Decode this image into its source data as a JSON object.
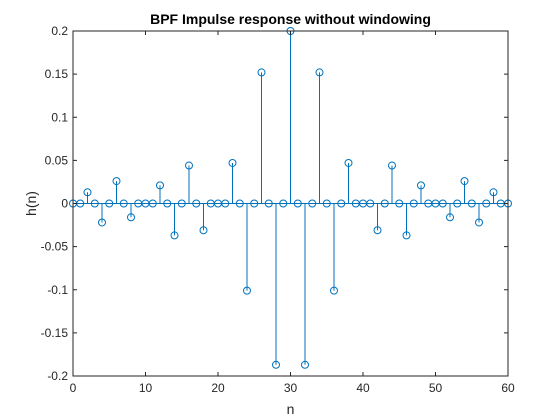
{
  "chart_data": {
    "type": "stem",
    "title": "BPF Impulse response without windowing",
    "xlabel": "n",
    "ylabel": "h(n)",
    "xlim": [
      0,
      60
    ],
    "ylim": [
      -0.2,
      0.2
    ],
    "xticks": [
      0,
      10,
      20,
      30,
      40,
      50,
      60
    ],
    "yticks": [
      -0.2,
      -0.15,
      -0.1,
      -0.05,
      0,
      0.05,
      0.1,
      0.15,
      0.2
    ],
    "ytick_labels": [
      "-0.2",
      "-0.15",
      "-0.1",
      "-0.05",
      "0",
      "0.05",
      "0.1",
      "0.15",
      "0.2"
    ],
    "grid": false,
    "color": "#0072BD",
    "x": [
      0,
      1,
      2,
      3,
      4,
      5,
      6,
      7,
      8,
      9,
      10,
      11,
      12,
      13,
      14,
      15,
      16,
      17,
      18,
      19,
      20,
      21,
      22,
      23,
      24,
      25,
      26,
      27,
      28,
      29,
      30,
      31,
      32,
      33,
      34,
      35,
      36,
      37,
      38,
      39,
      40,
      41,
      42,
      43,
      44,
      45,
      46,
      47,
      48,
      49,
      50,
      51,
      52,
      53,
      54,
      55,
      56,
      57,
      58,
      59,
      60
    ],
    "values": [
      0,
      0,
      0.013,
      0,
      -0.022,
      0,
      0.026,
      0,
      -0.016,
      0,
      0,
      0,
      0.021,
      0,
      -0.037,
      0,
      0.044,
      0,
      -0.031,
      0,
      0,
      0,
      0.047,
      0,
      -0.101,
      0,
      0.152,
      0,
      -0.187,
      0,
      0.2,
      0,
      -0.187,
      0,
      0.152,
      0,
      -0.101,
      0,
      0.047,
      0,
      0,
      0,
      -0.031,
      0,
      0.044,
      0,
      -0.037,
      0,
      0.021,
      0,
      0,
      0,
      -0.016,
      0,
      0.026,
      0,
      -0.022,
      0,
      0.013,
      0,
      0
    ]
  }
}
